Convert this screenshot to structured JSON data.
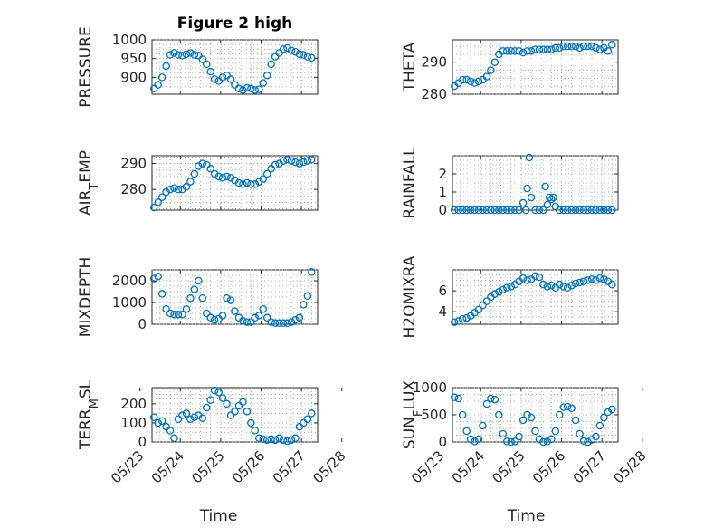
{
  "figure": {
    "title": "Figure 2 high",
    "xlabel": "Time",
    "marker_color": "#0072BD"
  },
  "chart_data": [
    {
      "type": "scatter",
      "panel": "top-left",
      "ylabel": "PRESSURE",
      "xlim": [
        23.3,
        27.4
      ],
      "ylim": [
        855,
        1000
      ],
      "yticks": [
        900,
        950,
        1000
      ],
      "yticklabels": [
        "900",
        "950",
        "1000"
      ],
      "xticks": [
        24,
        25,
        26,
        27
      ],
      "xticklabels": [],
      "x": [
        23.35,
        23.45,
        23.55,
        23.65,
        23.75,
        23.85,
        23.95,
        24.05,
        24.15,
        24.25,
        24.35,
        24.45,
        24.55,
        24.65,
        24.75,
        24.85,
        24.95,
        25.05,
        25.15,
        25.25,
        25.35,
        25.45,
        25.55,
        25.65,
        25.75,
        25.85,
        25.95,
        26.05,
        26.15,
        26.25,
        26.35,
        26.45,
        26.55,
        26.65,
        26.75,
        26.85,
        26.95,
        27.05,
        27.15,
        27.25
      ],
      "y": [
        870,
        880,
        900,
        930,
        960,
        965,
        960,
        958,
        962,
        965,
        960,
        958,
        948,
        935,
        915,
        895,
        890,
        900,
        905,
        895,
        880,
        870,
        866,
        872,
        870,
        866,
        868,
        885,
        905,
        935,
        955,
        965,
        975,
        978,
        972,
        968,
        962,
        960,
        955,
        952
      ]
    },
    {
      "type": "scatter",
      "panel": "top-right",
      "ylabel": "THETA",
      "xlim": [
        23.3,
        27.4
      ],
      "ylim": [
        280,
        297
      ],
      "yticks": [
        280,
        290
      ],
      "yticklabels": [
        "280",
        "290"
      ],
      "xticks": [
        24,
        25,
        26,
        27
      ],
      "xticklabels": [],
      "x": [
        23.35,
        23.45,
        23.55,
        23.65,
        23.75,
        23.85,
        23.95,
        24.05,
        24.15,
        24.25,
        24.35,
        24.45,
        24.55,
        24.65,
        24.75,
        24.85,
        24.95,
        25.05,
        25.15,
        25.25,
        25.35,
        25.45,
        25.55,
        25.65,
        25.75,
        25.85,
        25.95,
        26.05,
        26.15,
        26.25,
        26.35,
        26.45,
        26.55,
        26.65,
        26.75,
        26.85,
        26.95,
        27.05,
        27.15,
        27.25
      ],
      "y": [
        282.5,
        283.5,
        284.5,
        284.5,
        284,
        283.5,
        284,
        284.5,
        285.5,
        287.5,
        290,
        292.5,
        293.5,
        293.5,
        293.5,
        293.5,
        293.5,
        293,
        293.5,
        293.5,
        294,
        294,
        294,
        294,
        294,
        294.5,
        294.5,
        295,
        295,
        295,
        295,
        294.5,
        295,
        295,
        295,
        294.5,
        294,
        294.5,
        293.5,
        295.5
      ]
    },
    {
      "type": "scatter",
      "panel": "second-left",
      "ylabel": "AIR_TEMP",
      "xlim": [
        23.3,
        27.4
      ],
      "ylim": [
        272,
        293
      ],
      "yticks": [
        280,
        290
      ],
      "yticklabels": [
        "280",
        "290"
      ],
      "xticks": [
        24,
        25,
        26,
        27
      ],
      "xticklabels": [],
      "x": [
        23.35,
        23.45,
        23.55,
        23.65,
        23.75,
        23.85,
        23.95,
        24.05,
        24.15,
        24.25,
        24.35,
        24.45,
        24.55,
        24.65,
        24.75,
        24.85,
        24.95,
        25.05,
        25.15,
        25.25,
        25.35,
        25.45,
        25.55,
        25.65,
        25.75,
        25.85,
        25.95,
        26.05,
        26.15,
        26.25,
        26.35,
        26.45,
        26.55,
        26.65,
        26.75,
        26.85,
        26.95,
        27.05,
        27.15,
        27.25
      ],
      "y": [
        273,
        275,
        277,
        279,
        280,
        280.5,
        280,
        280,
        281,
        283,
        286,
        289,
        290,
        289.5,
        288,
        286,
        285,
        284.5,
        285,
        284.5,
        283.5,
        282.5,
        282,
        282.5,
        282,
        282,
        283,
        284,
        286,
        288,
        289.5,
        290,
        291,
        291.5,
        291,
        290.5,
        290,
        290.5,
        291,
        291.5
      ]
    },
    {
      "type": "scatter",
      "panel": "second-right",
      "ylabel": "RAINFALL",
      "xlim": [
        23.3,
        27.4
      ],
      "ylim": [
        0,
        3
      ],
      "yticks": [
        0,
        1,
        2
      ],
      "yticklabels": [
        "0",
        "1",
        "2"
      ],
      "xticks": [
        24,
        25,
        26,
        27
      ],
      "xticklabels": [],
      "x": [
        23.35,
        23.45,
        23.55,
        23.65,
        23.75,
        23.85,
        23.95,
        24.05,
        24.15,
        24.25,
        24.35,
        24.45,
        24.55,
        24.65,
        24.75,
        24.85,
        24.95,
        25.05,
        25.12,
        25.15,
        25.2,
        25.25,
        25.35,
        25.45,
        25.55,
        25.6,
        25.65,
        25.7,
        25.75,
        25.8,
        25.85,
        25.95,
        26.05,
        26.15,
        26.25,
        26.35,
        26.45,
        26.55,
        26.65,
        26.75,
        26.85,
        26.95,
        27.05,
        27.15,
        27.25
      ],
      "y": [
        0,
        0,
        0,
        0,
        0,
        0,
        0,
        0,
        0,
        0,
        0,
        0,
        0,
        0,
        0,
        0,
        0,
        0.4,
        0,
        1.2,
        2.9,
        0.7,
        0,
        0,
        0,
        1.3,
        0.3,
        0.7,
        0.6,
        0.7,
        0.2,
        0,
        0,
        0,
        0,
        0,
        0,
        0,
        0,
        0,
        0,
        0,
        0,
        0,
        0
      ]
    },
    {
      "type": "scatter",
      "panel": "third-left",
      "ylabel": "MIXDEPTH",
      "xlim": [
        23.3,
        27.4
      ],
      "ylim": [
        0,
        2500
      ],
      "yticks": [
        0,
        1000,
        2000
      ],
      "yticklabels": [
        "0",
        "1000",
        "2000"
      ],
      "xticks": [
        24,
        25,
        26,
        27
      ],
      "xticklabels": [],
      "x": [
        23.35,
        23.45,
        23.55,
        23.65,
        23.75,
        23.85,
        23.95,
        24.05,
        24.15,
        24.25,
        24.35,
        24.45,
        24.55,
        24.65,
        24.75,
        24.85,
        24.95,
        25.05,
        25.15,
        25.25,
        25.35,
        25.45,
        25.55,
        25.65,
        25.75,
        25.85,
        25.95,
        26.05,
        26.15,
        26.25,
        26.35,
        26.45,
        26.55,
        26.65,
        26.75,
        26.85,
        26.95,
        27.05,
        27.15,
        27.25
      ],
      "y": [
        2100,
        2200,
        1400,
        700,
        500,
        450,
        450,
        450,
        700,
        1200,
        1600,
        2000,
        1200,
        500,
        300,
        200,
        250,
        400,
        1200,
        1100,
        600,
        300,
        150,
        100,
        100,
        300,
        400,
        700,
        300,
        100,
        50,
        50,
        50,
        50,
        100,
        200,
        300,
        900,
        1300,
        2400
      ]
    },
    {
      "type": "scatter",
      "panel": "third-right",
      "ylabel": "H2OMIXRA",
      "xlim": [
        23.3,
        27.4
      ],
      "ylim": [
        2.8,
        8
      ],
      "yticks": [
        4,
        6
      ],
      "yticklabels": [
        "4",
        "6"
      ],
      "xticks": [
        24,
        25,
        26,
        27
      ],
      "xticklabels": [],
      "x": [
        23.35,
        23.45,
        23.55,
        23.65,
        23.75,
        23.85,
        23.95,
        24.05,
        24.15,
        24.25,
        24.35,
        24.45,
        24.55,
        24.65,
        24.75,
        24.85,
        24.95,
        25.05,
        25.15,
        25.25,
        25.35,
        25.45,
        25.55,
        25.65,
        25.75,
        25.85,
        25.95,
        26.05,
        26.15,
        26.25,
        26.35,
        26.45,
        26.55,
        26.65,
        26.75,
        26.85,
        26.95,
        27.05,
        27.15,
        27.25
      ],
      "y": [
        3,
        3.1,
        3.3,
        3.4,
        3.6,
        3.9,
        4.2,
        4.6,
        5.0,
        5.4,
        5.7,
        5.9,
        6.1,
        6.3,
        6.4,
        6.6,
        6.9,
        7.2,
        7.0,
        7.1,
        7.4,
        7.3,
        6.6,
        6.4,
        6.5,
        6.3,
        6.6,
        6.4,
        6.3,
        6.5,
        6.7,
        6.8,
        6.9,
        7.0,
        7.1,
        7.0,
        7.2,
        7.1,
        6.9,
        6.6
      ]
    },
    {
      "type": "scatter",
      "panel": "bottom-left",
      "ylabel": "TERR_MSL",
      "xlim": [
        23.3,
        27.4
      ],
      "ylim": [
        0,
        285
      ],
      "yticks": [
        0,
        100,
        200
      ],
      "yticklabels": [
        "0",
        "100",
        "200"
      ],
      "xticks": [
        23,
        24,
        25,
        26,
        27,
        28
      ],
      "xticklabels": [
        "05/23",
        "05/24",
        "05/25",
        "05/26",
        "05/27",
        "05/28"
      ],
      "x": [
        23.35,
        23.45,
        23.55,
        23.65,
        23.75,
        23.85,
        23.95,
        24.05,
        24.15,
        24.25,
        24.35,
        24.45,
        24.55,
        24.65,
        24.75,
        24.85,
        24.95,
        25.05,
        25.15,
        25.25,
        25.35,
        25.45,
        25.55,
        25.65,
        25.75,
        25.85,
        25.95,
        26.05,
        26.15,
        26.25,
        26.35,
        26.45,
        26.55,
        26.65,
        26.75,
        26.85,
        26.95,
        27.05,
        27.15,
        27.25
      ],
      "y": [
        130,
        100,
        110,
        80,
        60,
        20,
        120,
        140,
        150,
        120,
        130,
        140,
        125,
        180,
        220,
        270,
        260,
        230,
        200,
        140,
        160,
        190,
        210,
        160,
        100,
        60,
        20,
        15,
        10,
        15,
        10,
        20,
        10,
        5,
        10,
        20,
        80,
        100,
        120,
        150
      ]
    },
    {
      "type": "scatter",
      "panel": "bottom-right",
      "ylabel": "SUN_FLUX",
      "xlim": [
        23.3,
        27.4
      ],
      "ylim": [
        0,
        1000
      ],
      "yticks": [
        0,
        500,
        1000
      ],
      "yticklabels": [
        "0",
        "500",
        "1000"
      ],
      "xticks": [
        23,
        24,
        25,
        26,
        27,
        28
      ],
      "xticklabels": [
        "05/23",
        "05/24",
        "05/25",
        "05/26",
        "05/27",
        "05/28"
      ],
      "x": [
        23.35,
        23.45,
        23.55,
        23.65,
        23.75,
        23.85,
        23.95,
        24.05,
        24.15,
        24.25,
        24.35,
        24.45,
        24.55,
        24.65,
        24.75,
        24.85,
        24.95,
        25.05,
        25.15,
        25.25,
        25.35,
        25.45,
        25.55,
        25.65,
        25.75,
        25.85,
        25.95,
        26.05,
        26.15,
        26.25,
        26.35,
        26.45,
        26.55,
        26.65,
        26.75,
        26.85,
        26.95,
        27.05,
        27.15,
        27.25
      ],
      "y": [
        820,
        800,
        500,
        200,
        50,
        10,
        50,
        300,
        700,
        800,
        780,
        500,
        150,
        10,
        0,
        10,
        100,
        400,
        500,
        450,
        200,
        50,
        0,
        10,
        50,
        200,
        500,
        640,
        650,
        620,
        400,
        150,
        20,
        0,
        40,
        100,
        300,
        450,
        550,
        600
      ]
    }
  ]
}
